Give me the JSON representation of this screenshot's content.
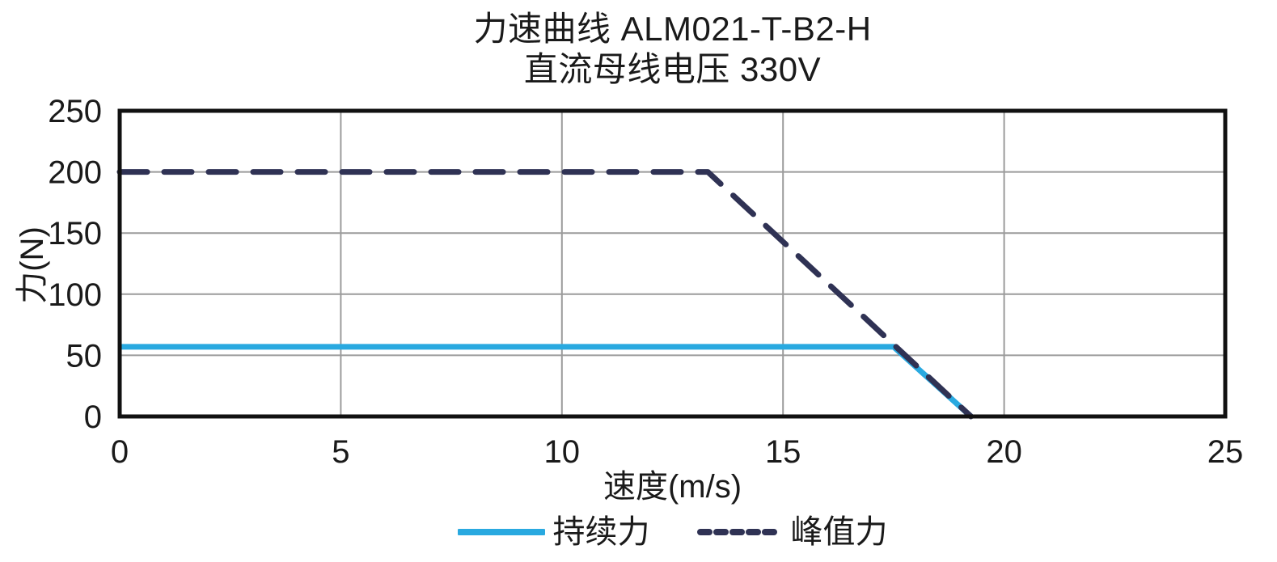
{
  "chart_data": {
    "type": "line",
    "title": "力速曲线 ALM021-T-B2-H",
    "subtitle": "直流母线电压 330V",
    "xlabel": "速度(m/s)",
    "ylabel": "力(N)",
    "xlim": [
      0,
      25
    ],
    "ylim": [
      0,
      250
    ],
    "x_ticks": [
      0,
      5,
      10,
      15,
      20,
      25
    ],
    "y_ticks": [
      0,
      50,
      100,
      150,
      200,
      250
    ],
    "grid": true,
    "legend_position": "bottom",
    "series": [
      {
        "key": "continuous-force",
        "name": "持续力",
        "line_style": "solid",
        "color": "#29a9e0",
        "points": [
          [
            0,
            57
          ],
          [
            17.5,
            57
          ],
          [
            19.25,
            0
          ]
        ]
      },
      {
        "key": "peak-force",
        "name": "峰值力",
        "line_style": "dashed",
        "color": "#2f3254",
        "points": [
          [
            0,
            200
          ],
          [
            13.3,
            200
          ],
          [
            19.25,
            0
          ]
        ]
      }
    ],
    "colors": {
      "text": "#1a1a1a",
      "grid": "#9b9b9b",
      "border": "#111111",
      "background": "#ffffff"
    }
  }
}
